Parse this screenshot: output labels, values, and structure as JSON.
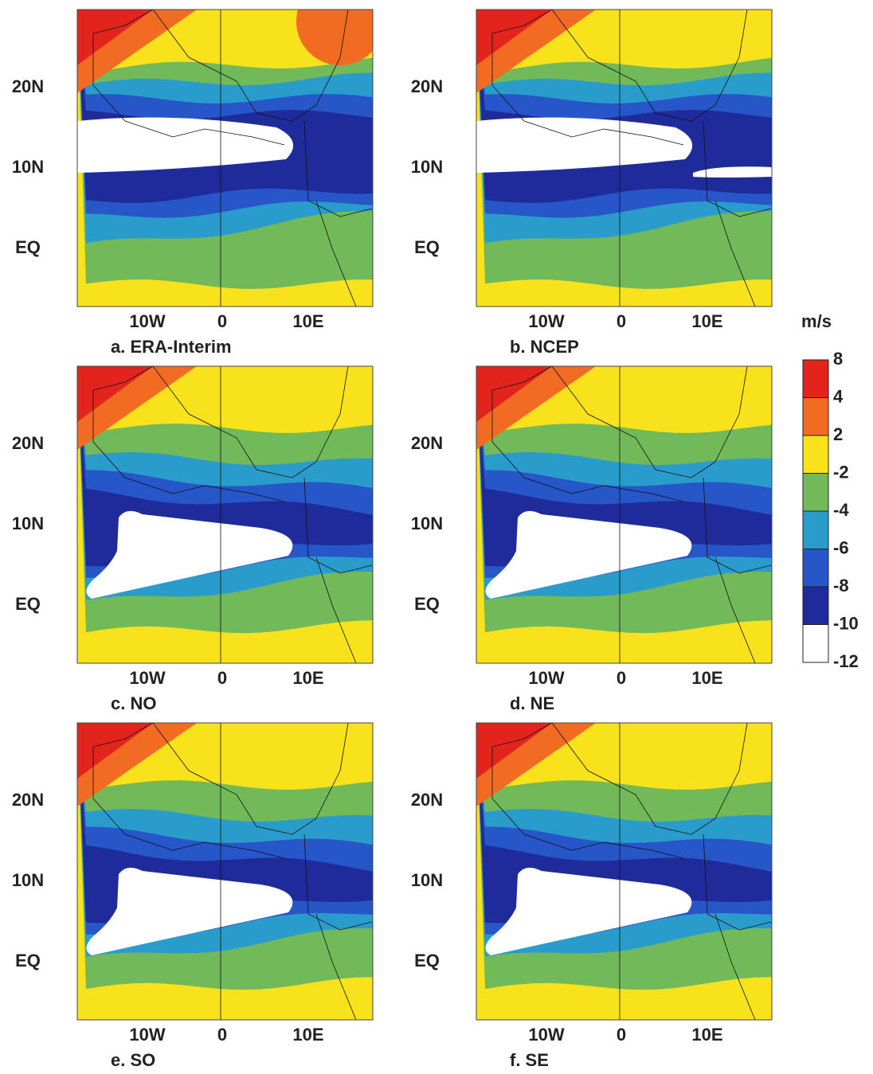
{
  "panels": [
    {
      "label": "a.  ERA-Interim"
    },
    {
      "label": "b.  NCEP"
    },
    {
      "label": "c.  NO"
    },
    {
      "label": "d.  NE"
    },
    {
      "label": "e.  SO"
    },
    {
      "label": "f.  SE"
    }
  ],
  "lat_ticks": [
    "20N",
    "10N",
    "EQ"
  ],
  "lon_ticks": [
    "10W",
    "0",
    "10E"
  ],
  "colorbar": {
    "unit": "m/s",
    "levels": [
      8,
      4,
      2,
      -2,
      -4,
      -6,
      -8,
      -10,
      -12
    ],
    "colors": [
      "#e3241c",
      "#f26b22",
      "#f7e21c",
      "#72b95a",
      "#2a9ccc",
      "#2656c8",
      "#1f2b9a",
      "#ffffff"
    ]
  }
}
